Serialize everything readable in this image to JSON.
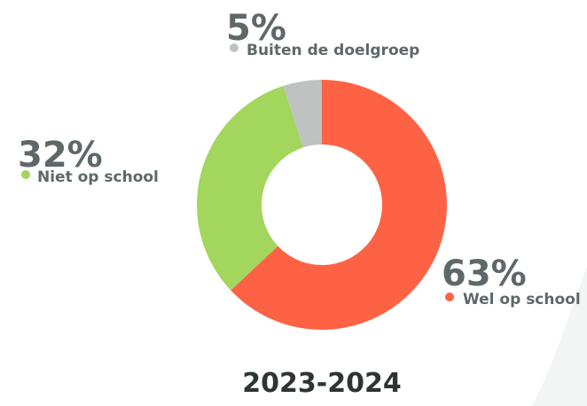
{
  "chart_data": {
    "type": "donut",
    "title": "2023-2024",
    "categories": [
      "Wel op school",
      "Niet op school",
      "Buiten de doelgroep"
    ],
    "values": [
      63,
      32,
      5
    ],
    "value_labels": [
      "63%",
      "32%",
      "5%"
    ],
    "colors": [
      "#fe6244",
      "#a2d65c",
      "#bec2c1"
    ]
  }
}
